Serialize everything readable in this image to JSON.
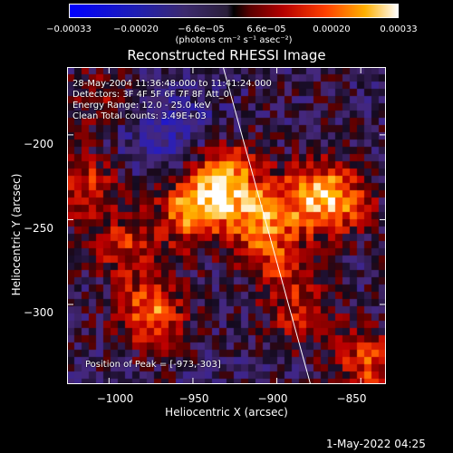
{
  "chart_data": {
    "type": "heatmap",
    "title": "Reconstructed RHESSI Image",
    "xlabel": "Heliocentric X (arcsec)",
    "ylabel": "Heliocentric Y (arcsec)",
    "xlim": [
      -1025,
      -835
    ],
    "ylim": [
      -347,
      -160
    ],
    "xticks": [
      "−1000",
      "−950",
      "−900",
      "−850"
    ],
    "xtick_values": [
      -1000,
      -950,
      -900,
      -850
    ],
    "yticks": [
      "−200",
      "−250",
      "−300"
    ],
    "ytick_values": [
      -200,
      -250,
      -300
    ],
    "colorbar": {
      "ticks": [
        "−0.00033",
        "−0.00020",
        "−6.6e−05",
        "6.6e−05",
        "0.00020",
        "0.00033"
      ],
      "tick_values": [
        -0.00033,
        -0.0002,
        -6.6e-05,
        6.6e-05,
        0.0002,
        0.00033
      ],
      "unit": "(photons cm⁻² s⁻¹ asec⁻²)",
      "range": [
        -0.00033,
        0.00033
      ]
    },
    "info": {
      "time": "28-May-2004 11:36:48.000 to 11:41:24.000",
      "detectors": "Detectors: 3F 4F 5F 6F 7F 8F Att_0",
      "energy": "Energy Range: 12.0 - 25.0 keV",
      "method": "Clean     Total counts: 3.49E+03",
      "peak": "Position of Peak = [-973,-303]"
    },
    "limb_line": {
      "x1": -932,
      "y1": -160,
      "x2": -880,
      "y2": -347
    },
    "sources": [
      {
        "x": -950,
        "y": -245,
        "peak": 0.00028
      },
      {
        "x": -932,
        "y": -225,
        "peak": 0.0003
      },
      {
        "x": -910,
        "y": -248,
        "peak": 0.00024
      },
      {
        "x": -880,
        "y": -235,
        "peak": 0.00022
      },
      {
        "x": -862,
        "y": -240,
        "peak": 0.0002
      },
      {
        "x": -975,
        "y": -305,
        "peak": 0.00026
      },
      {
        "x": -1015,
        "y": -230,
        "peak": 0.00018
      },
      {
        "x": -990,
        "y": -265,
        "peak": 0.00016
      },
      {
        "x": -900,
        "y": -275,
        "peak": 0.00015
      },
      {
        "x": -845,
        "y": -335,
        "peak": 0.0002
      },
      {
        "x": -885,
        "y": -305,
        "peak": 0.00014
      },
      {
        "x": -1005,
        "y": -180,
        "peak": 0.0001
      }
    ]
  },
  "footer": {
    "timestamp": "1-May-2022 04:25"
  }
}
